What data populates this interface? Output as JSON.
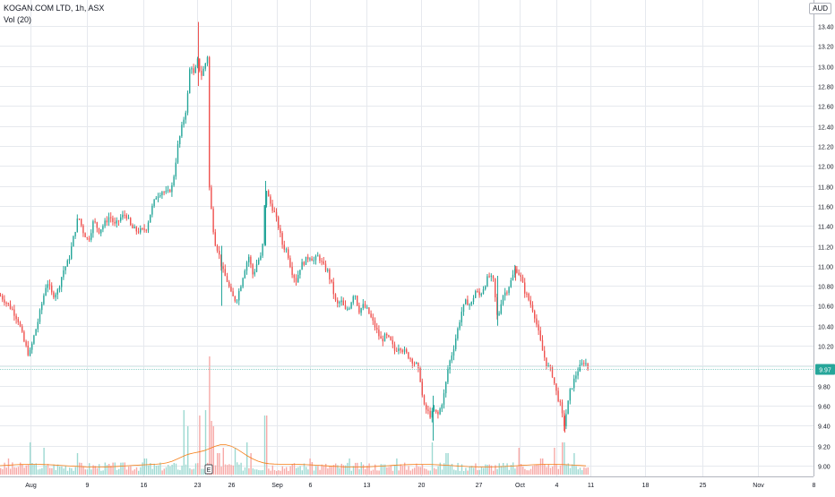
{
  "header": {
    "symbol_line": "KOGAN.COM LTD, 1h, ASX",
    "volume_label": "Vol (20)",
    "currency": "AUD"
  },
  "last_price_label": "9.97",
  "event_marker": "E",
  "colors": {
    "up": "#26a69a",
    "down": "#ef5350",
    "vol_up": "#9dd9d2",
    "vol_down": "#f7a9a7",
    "vol_ma": "#f57f17",
    "grid": "#e6e9ee",
    "axis_text": "#131722",
    "price_line": "#26a69a"
  },
  "chart_data": {
    "type": "candlestick",
    "title": "KOGAN.COM LTD, 1h, ASX",
    "y_range": [
      8.94,
      13.44
    ],
    "y_ticks": [
      "13.40",
      "13.20",
      "13.00",
      "12.80",
      "12.60",
      "12.40",
      "12.20",
      "12.00",
      "11.80",
      "11.60",
      "11.40",
      "11.20",
      "11.00",
      "10.80",
      "10.60",
      "10.40",
      "10.20",
      "10.00",
      "9.80",
      "9.60",
      "9.40",
      "9.20",
      "9.00"
    ],
    "x_ticks": [
      "Aug",
      "9",
      "16",
      "23",
      "26",
      "Sep",
      "6",
      "13",
      "20",
      "27",
      "Oct",
      "4",
      "11",
      "18",
      "25",
      "Nov",
      "8"
    ],
    "grid": true,
    "last_price": 9.97,
    "close_path": [
      [
        0,
        10.7
      ],
      [
        8,
        10.62
      ],
      [
        14,
        10.55
      ],
      [
        20,
        10.45
      ],
      [
        26,
        10.25
      ],
      [
        32,
        10.1
      ],
      [
        37,
        10.28
      ],
      [
        42,
        10.45
      ],
      [
        47,
        10.65
      ],
      [
        52,
        10.85
      ],
      [
        58,
        10.7
      ],
      [
        64,
        10.75
      ],
      [
        70,
        10.95
      ],
      [
        76,
        11.05
      ],
      [
        82,
        11.3
      ],
      [
        87,
        11.5
      ],
      [
        92,
        11.35
      ],
      [
        98,
        11.25
      ],
      [
        104,
        11.45
      ],
      [
        110,
        11.35
      ],
      [
        116,
        11.42
      ],
      [
        122,
        11.5
      ],
      [
        128,
        11.4
      ],
      [
        134,
        11.48
      ],
      [
        140,
        11.52
      ],
      [
        146,
        11.38
      ],
      [
        152,
        11.35
      ],
      [
        158,
        11.35
      ],
      [
        163,
        11.38
      ],
      [
        168,
        11.55
      ],
      [
        174,
        11.7
      ],
      [
        180,
        11.75
      ],
      [
        186,
        11.72
      ],
      [
        192,
        11.8
      ],
      [
        198,
        12.2
      ],
      [
        204,
        12.45
      ],
      [
        208,
        12.6
      ],
      [
        212,
        13.05
      ],
      [
        216,
        12.9
      ],
      [
        220,
        13.05
      ],
      [
        224,
        12.9
      ],
      [
        228,
        13.0
      ],
      [
        231,
        13.1
      ],
      [
        233,
        11.8
      ],
      [
        236,
        11.5
      ],
      [
        239,
        11.25
      ],
      [
        243,
        11.15
      ],
      [
        248,
        10.95
      ],
      [
        253,
        10.85
      ],
      [
        258,
        10.7
      ],
      [
        263,
        10.65
      ],
      [
        268,
        10.8
      ],
      [
        272,
        10.95
      ],
      [
        277,
        11.1
      ],
      [
        282,
        10.9
      ],
      [
        287,
        11.05
      ],
      [
        292,
        11.1
      ],
      [
        296,
        11.8
      ],
      [
        300,
        11.65
      ],
      [
        305,
        11.55
      ],
      [
        310,
        11.4
      ],
      [
        315,
        11.2
      ],
      [
        320,
        11.15
      ],
      [
        325,
        10.95
      ],
      [
        330,
        10.85
      ],
      [
        335,
        11.0
      ],
      [
        340,
        11.05
      ],
      [
        345,
        11.1
      ],
      [
        350,
        11.05
      ],
      [
        355,
        11.1
      ],
      [
        360,
        11.0
      ],
      [
        365,
        10.95
      ],
      [
        370,
        10.8
      ],
      [
        375,
        10.6
      ],
      [
        380,
        10.65
      ],
      [
        385,
        10.55
      ],
      [
        390,
        10.6
      ],
      [
        395,
        10.75
      ],
      [
        400,
        10.55
      ],
      [
        405,
        10.6
      ],
      [
        410,
        10.55
      ],
      [
        415,
        10.45
      ],
      [
        420,
        10.35
      ],
      [
        425,
        10.25
      ],
      [
        430,
        10.3
      ],
      [
        435,
        10.25
      ],
      [
        440,
        10.15
      ],
      [
        445,
        10.2
      ],
      [
        450,
        10.15
      ],
      [
        455,
        10.1
      ],
      [
        460,
        10.05
      ],
      [
        465,
        10.0
      ],
      [
        469,
        9.85
      ],
      [
        472,
        9.6
      ],
      [
        476,
        9.55
      ],
      [
        480,
        9.5
      ],
      [
        484,
        9.55
      ],
      [
        488,
        9.5
      ],
      [
        492,
        9.6
      ],
      [
        496,
        9.75
      ],
      [
        500,
        10.0
      ],
      [
        505,
        10.15
      ],
      [
        510,
        10.35
      ],
      [
        515,
        10.55
      ],
      [
        520,
        10.65
      ],
      [
        525,
        10.6
      ],
      [
        530,
        10.75
      ],
      [
        535,
        10.7
      ],
      [
        540,
        10.8
      ],
      [
        545,
        10.9
      ],
      [
        550,
        10.85
      ],
      [
        555,
        10.45
      ],
      [
        560,
        10.7
      ],
      [
        565,
        10.75
      ],
      [
        570,
        10.85
      ],
      [
        575,
        10.98
      ],
      [
        580,
        10.9
      ],
      [
        585,
        10.75
      ],
      [
        590,
        10.65
      ],
      [
        595,
        10.55
      ],
      [
        600,
        10.35
      ],
      [
        605,
        10.15
      ],
      [
        610,
        10.0
      ],
      [
        615,
        9.95
      ],
      [
        620,
        9.75
      ],
      [
        625,
        9.6
      ],
      [
        629,
        9.4
      ],
      [
        632,
        9.55
      ],
      [
        636,
        9.75
      ],
      [
        640,
        9.85
      ],
      [
        644,
        9.95
      ],
      [
        648,
        10.0
      ],
      [
        652,
        10.05
      ],
      [
        656,
        9.97
      ]
    ],
    "volume_spikes": [
      [
        9,
        3
      ],
      [
        33,
        6
      ],
      [
        48,
        5
      ],
      [
        86,
        4
      ],
      [
        162,
        3
      ],
      [
        205,
        12
      ],
      [
        209,
        9
      ],
      [
        222,
        11
      ],
      [
        229,
        12
      ],
      [
        233,
        22
      ],
      [
        236,
        10
      ],
      [
        238,
        9
      ],
      [
        243,
        4
      ],
      [
        249,
        5
      ],
      [
        262,
        5
      ],
      [
        275,
        6
      ],
      [
        280,
        4
      ],
      [
        296,
        11
      ],
      [
        346,
        3
      ],
      [
        390,
        3
      ],
      [
        442,
        3
      ],
      [
        482,
        6
      ],
      [
        498,
        4
      ],
      [
        578,
        5
      ],
      [
        604,
        3
      ],
      [
        618,
        5
      ],
      [
        628,
        6
      ],
      [
        640,
        4
      ]
    ]
  }
}
